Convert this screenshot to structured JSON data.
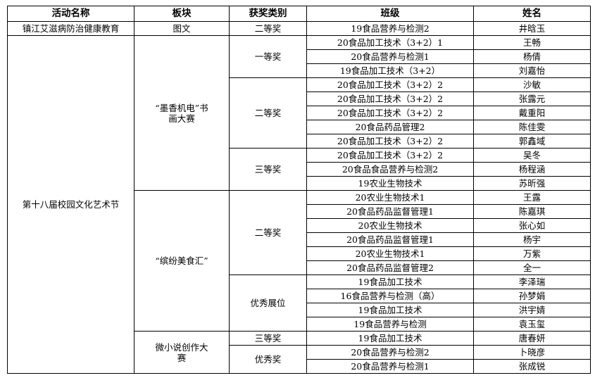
{
  "headers": [
    "活动名称",
    "板块",
    "获奖类别",
    "班级",
    "姓名"
  ],
  "activities": [
    {
      "name": "镇江艾滋病防治健康教育",
      "sections": [
        {
          "name": "图文",
          "awards": [
            {
              "name": "二等奖",
              "winners": [
                [
                  "19食品营养与检测2",
                  "井晗玉"
                ]
              ]
            }
          ]
        }
      ]
    },
    {
      "name": "第十八届校园文化艺术节",
      "sections": [
        {
          "name": "“墨香机电”书画大赛",
          "awards": [
            {
              "name": "一等奖",
              "winners": [
                [
                  "20食品加工技术（3+2）1",
                  "王畅"
                ],
                [
                  "20食品营养与检测1",
                  "杨倩"
                ],
                [
                  "19食品加工技术（3+2）",
                  "刘嘉怡"
                ]
              ]
            },
            {
              "name": "二等奖",
              "winners": [
                [
                  "20食品加工技术（3+2）2",
                  "沙敏"
                ],
                [
                  "20食品加工技术（3+2）2",
                  "张露元"
                ],
                [
                  "20食品加工技术（3+2）2",
                  "戴重阳"
                ],
                [
                  "20食品药品管理2",
                  "陈佳雯"
                ],
                [
                  "20食品加工技术（3+2）2",
                  "郭鑫域"
                ]
              ]
            },
            {
              "name": "三等奖",
              "winners": [
                [
                  "20食品加工技术（3+2）2",
                  "吴冬"
                ],
                [
                  "20食品食品营养与检测2",
                  "杨程涵"
                ],
                [
                  "19农业生物技术",
                  "苏昕强"
                ]
              ]
            }
          ]
        },
        {
          "name": "“缤纷美食汇”",
          "awards": [
            {
              "name": "二等奖",
              "winners": [
                [
                  "20农业生物技术1",
                  "王露"
                ],
                [
                  "20食品药品监督管理1",
                  "陈嘉琪"
                ],
                [
                  "20农业生物技术",
                  "张心如"
                ],
                [
                  "20食品药品监督管理1",
                  "杨宇"
                ],
                [
                  "20农业生物技术1",
                  "万紫"
                ],
                [
                  "20食品药品监督管理2",
                  "全一"
                ]
              ]
            },
            {
              "name": "优秀展位",
              "winners": [
                [
                  "19食品加工技术",
                  "李泽瑞"
                ],
                [
                  "16食品营养与检测（高）",
                  "孙梦娟"
                ],
                [
                  "19食品加工技术",
                  "洪宇婧"
                ],
                [
                  "19食品营养与检测",
                  "袁玉玺"
                ]
              ]
            }
          ]
        },
        {
          "name": "微小说创作大赛",
          "awards": [
            {
              "name": "三等奖",
              "winners": [
                [
                  "19食品加工技术",
                  "唐春妍"
                ]
              ]
            },
            {
              "name": "优秀奖",
              "winners": [
                [
                  "20食品营养与检测2",
                  "卜晓彦"
                ],
                [
                  "20食品营养与检测1",
                  "张成锐"
                ]
              ]
            }
          ]
        }
      ]
    }
  ]
}
